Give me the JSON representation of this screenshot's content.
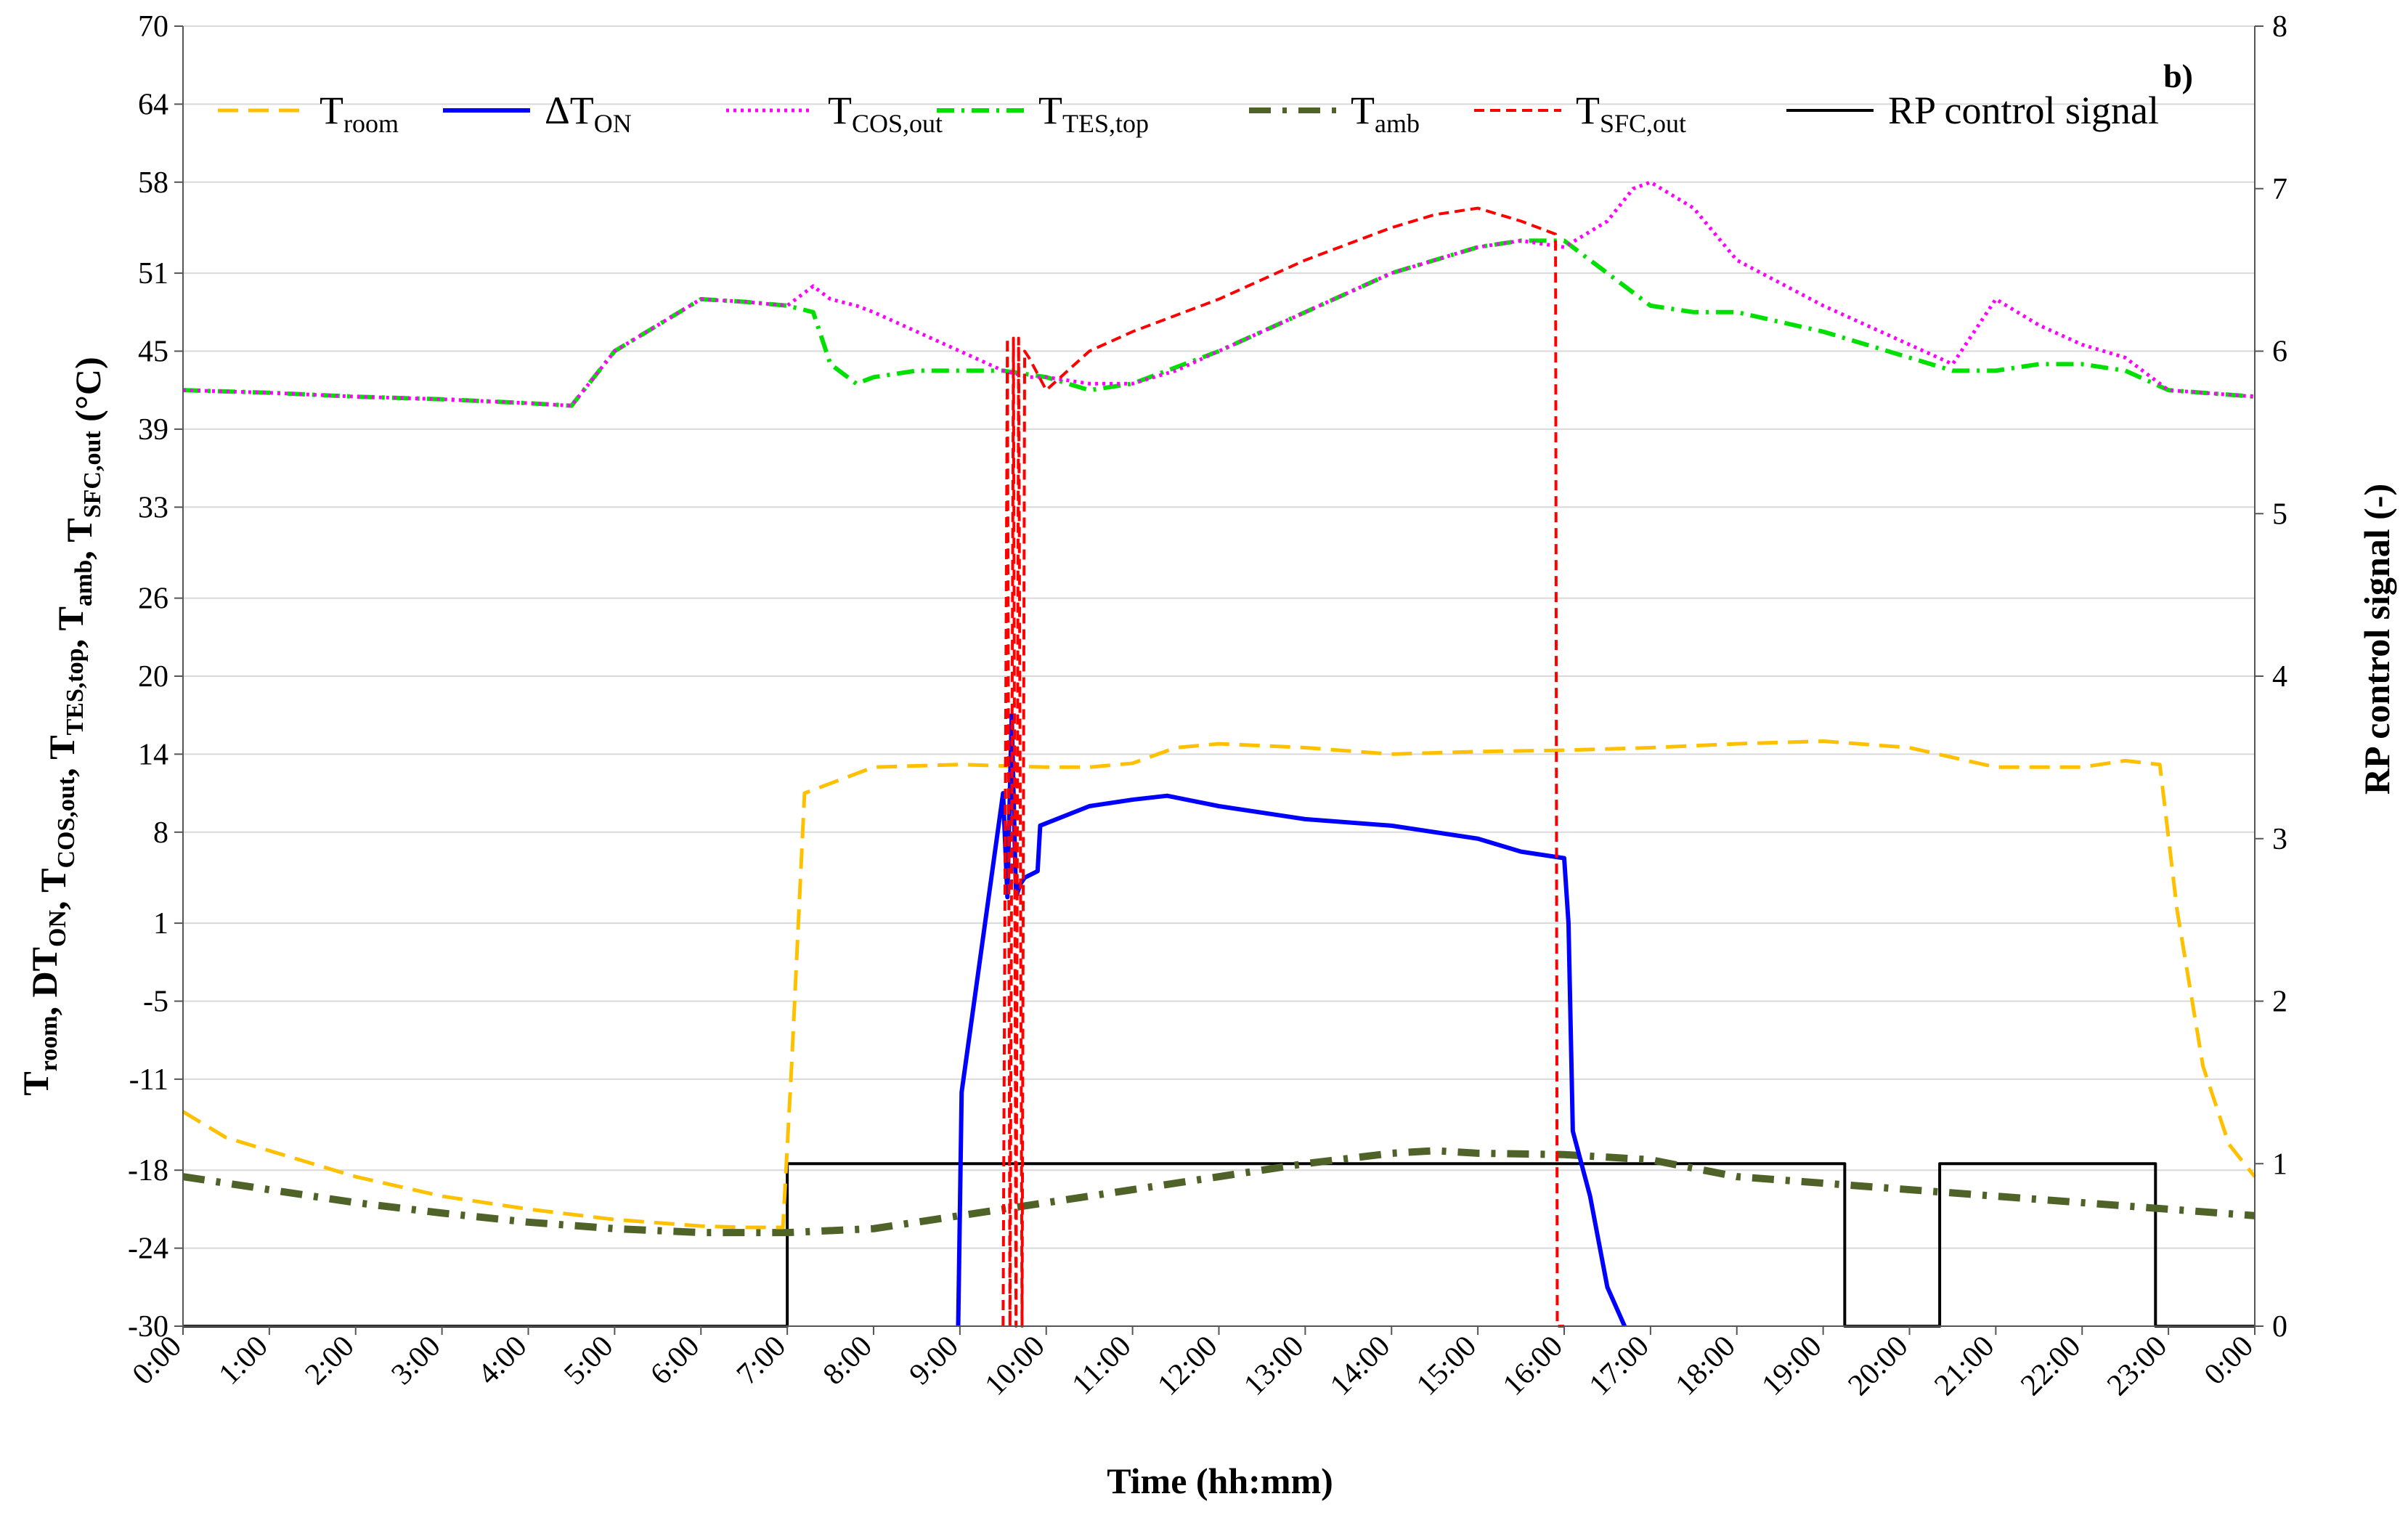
{
  "chart_data": {
    "type": "line",
    "panel_label": "b)",
    "xlabel": "Time (hh:mm)",
    "ylabel_left_parts": [
      {
        "t": "T",
        "sub": "room"
      },
      {
        "t": ", DT",
        "sub": "ON"
      },
      {
        "t": ", T",
        "sub": "COS,out"
      },
      {
        "t": ", T",
        "sub": "TES,top"
      },
      {
        "t": ", T",
        "sub": "amb"
      },
      {
        "t": ", T",
        "sub": "SFC,out"
      },
      {
        "t": " (°C)",
        "sub": ""
      }
    ],
    "ylabel_right": "RP control signal (-)",
    "x_ticks": [
      "0:00",
      "1:00",
      "2:00",
      "3:00",
      "4:00",
      "5:00",
      "6:00",
      "7:00",
      "8:00",
      "9:00",
      "10:00",
      "11:00",
      "12:00",
      "13:00",
      "14:00",
      "15:00",
      "16:00",
      "17:00",
      "18:00",
      "19:00",
      "20:00",
      "21:00",
      "22:00",
      "23:00",
      "0:00"
    ],
    "xlim": [
      0,
      24
    ],
    "ylim_left": [
      -30,
      70
    ],
    "y_ticks_left": [
      -30,
      -24,
      -18,
      -11,
      -5,
      1,
      8,
      14,
      20,
      26,
      33,
      39,
      45,
      51,
      58,
      64,
      70
    ],
    "ylim_right": [
      0,
      8
    ],
    "y_ticks_right": [
      0,
      1,
      2,
      3,
      4,
      5,
      6,
      7,
      8
    ],
    "colors": {
      "room": "#FFC000",
      "dton": "#0000FF",
      "cos": "#FF00FF",
      "tes": "#00E000",
      "amb": "#4F6228",
      "sfc": "#FF0000",
      "rp": "#000000"
    },
    "legend": [
      {
        "key": "room",
        "label": "T",
        "sub": "room"
      },
      {
        "key": "dton",
        "label": "ΔT",
        "sub": "ON"
      },
      {
        "key": "cos",
        "label": "T",
        "sub": "COS,out"
      },
      {
        "key": "tes",
        "label": "T",
        "sub": "TES,top"
      },
      {
        "key": "amb",
        "label": "T",
        "sub": "amb"
      },
      {
        "key": "sfc",
        "label": "T",
        "sub": "SFC,out"
      },
      {
        "key": "rp",
        "label": "RP control signal",
        "sub": ""
      }
    ],
    "series": [
      {
        "key": "room",
        "name": "T_room",
        "axis": "left",
        "x": [
          0,
          0.5,
          1,
          2,
          3,
          4,
          5,
          6,
          6.5,
          6.95,
          7.05,
          7.2,
          8,
          9,
          10,
          10.5,
          11,
          11.5,
          12,
          13,
          14,
          15,
          16,
          17,
          18,
          19,
          20,
          21,
          22,
          22.5,
          22.9,
          23.1,
          23.4,
          23.7,
          24
        ],
        "y": [
          -13.5,
          -15.5,
          -16.5,
          -18.5,
          -20,
          -21,
          -21.8,
          -22.3,
          -22.4,
          -22.4,
          -10,
          11,
          13,
          13.2,
          13,
          13,
          13.3,
          14.5,
          14.8,
          14.5,
          14,
          14.2,
          14.3,
          14.5,
          14.8,
          15,
          14.5,
          13,
          13,
          13.5,
          13.2,
          2,
          -10,
          -16,
          -18.5
        ]
      },
      {
        "key": "dton",
        "name": "ΔT_ON",
        "axis": "left",
        "x": [
          8.98,
          9.02,
          9.5,
          9.55,
          9.6,
          9.65,
          9.7,
          9.75,
          9.9,
          9.93,
          10.5,
          11,
          11.4,
          12,
          13,
          14,
          15,
          15.5,
          16,
          16.05,
          16.1,
          16.3,
          16.5,
          16.7
        ],
        "y": [
          -30,
          -12,
          11,
          3,
          17,
          3,
          4,
          4.5,
          5,
          8.5,
          10,
          10.5,
          10.8,
          10,
          9,
          8.5,
          7.5,
          6.5,
          6,
          1,
          -15,
          -20,
          -27,
          -30
        ]
      },
      {
        "key": "cos",
        "name": "T_COS,out",
        "axis": "left",
        "x": [
          0,
          1,
          2,
          3,
          4,
          4.5,
          5,
          6,
          6.5,
          7,
          7.3,
          7.5,
          7.8,
          8,
          8.5,
          9,
          9.5,
          9.8,
          10,
          10.5,
          11,
          11.5,
          12,
          13,
          14,
          15,
          15.5,
          16,
          16.5,
          16.8,
          17,
          17.5,
          18,
          19,
          19.5,
          20,
          20.5,
          21,
          21.5,
          22,
          22.5,
          23,
          24
        ],
        "y": [
          42,
          41.8,
          41.5,
          41.3,
          41,
          40.8,
          45,
          49,
          48.8,
          48.5,
          50,
          49,
          48.5,
          48,
          46.5,
          45,
          43.5,
          43,
          43,
          42.5,
          42.5,
          43.5,
          45,
          48,
          51,
          53,
          53.5,
          53,
          55,
          57.5,
          58,
          56,
          52,
          48.5,
          47,
          45.5,
          44,
          49,
          47,
          45.5,
          44.5,
          42,
          41.5
        ]
      },
      {
        "key": "tes",
        "name": "T_TES,top",
        "axis": "left",
        "x": [
          0,
          1,
          2,
          3,
          4,
          4.5,
          5,
          6,
          6.5,
          7,
          7.3,
          7.5,
          7.8,
          8,
          8.5,
          9,
          9.5,
          10,
          10.5,
          11,
          12,
          13,
          14,
          15,
          15.5,
          16,
          16.5,
          17,
          17.5,
          18,
          19,
          20,
          20.5,
          21,
          21.5,
          22,
          22.5,
          23,
          24
        ],
        "y": [
          42,
          41.8,
          41.5,
          41.3,
          41,
          40.8,
          45,
          49,
          48.8,
          48.5,
          48,
          44,
          42.5,
          43,
          43.5,
          43.5,
          43.5,
          43,
          42,
          42.5,
          45,
          48,
          51,
          53,
          53.5,
          53.5,
          51,
          48.5,
          48,
          48,
          46.5,
          44.5,
          43.5,
          43.5,
          44,
          44,
          43.5,
          42,
          41.5
        ]
      },
      {
        "key": "amb",
        "name": "T_amb",
        "axis": "left",
        "x": [
          0,
          1,
          2,
          3,
          4,
          5,
          6,
          7,
          8,
          9,
          10,
          11,
          12,
          13,
          14,
          14.5,
          15,
          16,
          17,
          18,
          19,
          20,
          21,
          22,
          23,
          24
        ],
        "y": [
          -18.5,
          -19.5,
          -20.5,
          -21.3,
          -22,
          -22.5,
          -22.8,
          -22.8,
          -22.5,
          -21.5,
          -20.5,
          -19.5,
          -18.5,
          -17.5,
          -16.7,
          -16.5,
          -16.7,
          -16.8,
          -17.2,
          -18.5,
          -19,
          -19.5,
          -20,
          -20.5,
          -21,
          -21.5
        ]
      },
      {
        "key": "sfc",
        "name": "T_SFC,out",
        "axis": "left",
        "x": [
          9.5,
          9.55,
          9.58,
          9.62,
          9.65,
          9.68,
          9.72,
          9.75,
          9.8,
          10,
          10.5,
          11,
          12,
          13,
          14,
          14.5,
          15,
          15.5,
          15.9,
          15.92,
          16.0
        ],
        "y": [
          -30,
          46,
          -30,
          46,
          -30,
          46,
          -30,
          45,
          44.5,
          42,
          45,
          46.5,
          49,
          52,
          54.5,
          55.5,
          56,
          55,
          54,
          -30,
          -30
        ]
      },
      {
        "key": "rp",
        "name": "RP control signal",
        "axis": "right",
        "x": [
          0,
          6.95,
          7.0,
          7.3,
          9.0,
          16.0,
          17.0,
          19.2,
          19.25,
          20.3,
          20.35,
          21.5,
          22.0,
          22.1,
          22.8,
          22.85,
          24
        ],
        "y": [
          0,
          0,
          1,
          1,
          1,
          1,
          1,
          1,
          0,
          0,
          1,
          1,
          1,
          1,
          1,
          0,
          0
        ]
      }
    ]
  }
}
